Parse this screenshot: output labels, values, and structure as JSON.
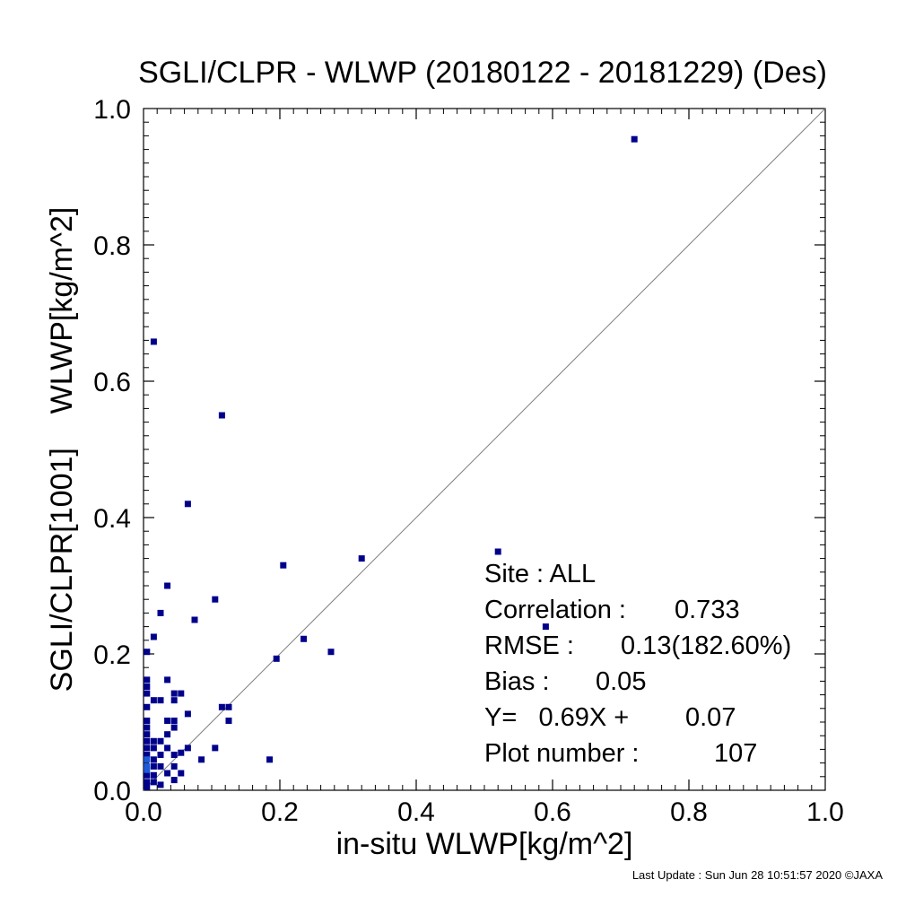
{
  "chart_data": {
    "type": "scatter",
    "title": "SGLI/CLPR - WLWP (20180122 - 20181229) (Des)",
    "xlabel": "in-situ WLWP[kg/m^2]",
    "ylabel": "SGLI/CLPR[1001]    WLWP[kg/m^2]",
    "xlim": [
      0.0,
      1.0
    ],
    "ylim": [
      0.0,
      1.0
    ],
    "x_ticks": [
      "0.0",
      "0.2",
      "0.4",
      "0.6",
      "0.8",
      "1.0"
    ],
    "y_ticks": [
      "0.0",
      "0.2",
      "0.4",
      "0.6",
      "0.8",
      "1.0"
    ],
    "reference_line": "1:1",
    "grid": false,
    "colors": {
      "point": "#00008b",
      "point_dense": "#1e5bd8",
      "reference_line": "#808080"
    },
    "points": [
      {
        "x": 0.72,
        "y": 0.955
      },
      {
        "x": 0.015,
        "y": 0.658
      },
      {
        "x": 0.115,
        "y": 0.55
      },
      {
        "x": 0.065,
        "y": 0.42
      },
      {
        "x": 0.52,
        "y": 0.35
      },
      {
        "x": 0.32,
        "y": 0.34
      },
      {
        "x": 0.205,
        "y": 0.33
      },
      {
        "x": 0.035,
        "y": 0.3
      },
      {
        "x": 0.105,
        "y": 0.28
      },
      {
        "x": 0.025,
        "y": 0.26
      },
      {
        "x": 0.075,
        "y": 0.25
      },
      {
        "x": 0.59,
        "y": 0.24
      },
      {
        "x": 0.015,
        "y": 0.225
      },
      {
        "x": 0.235,
        "y": 0.222
      },
      {
        "x": 0.275,
        "y": 0.203
      },
      {
        "x": 0.005,
        "y": 0.203
      },
      {
        "x": 0.195,
        "y": 0.193
      },
      {
        "x": 0.005,
        "y": 0.162
      },
      {
        "x": 0.035,
        "y": 0.162
      },
      {
        "x": 0.005,
        "y": 0.152
      },
      {
        "x": 0.005,
        "y": 0.142
      },
      {
        "x": 0.045,
        "y": 0.142
      },
      {
        "x": 0.055,
        "y": 0.142
      },
      {
        "x": 0.015,
        "y": 0.132
      },
      {
        "x": 0.025,
        "y": 0.132
      },
      {
        "x": 0.045,
        "y": 0.132
      },
      {
        "x": 0.115,
        "y": 0.122
      },
      {
        "x": 0.125,
        "y": 0.122
      },
      {
        "x": 0.005,
        "y": 0.122
      },
      {
        "x": 0.065,
        "y": 0.112
      },
      {
        "x": 0.035,
        "y": 0.102
      },
      {
        "x": 0.045,
        "y": 0.102
      },
      {
        "x": 0.125,
        "y": 0.102
      },
      {
        "x": 0.005,
        "y": 0.102
      },
      {
        "x": 0.045,
        "y": 0.092
      },
      {
        "x": 0.005,
        "y": 0.092
      },
      {
        "x": 0.035,
        "y": 0.082
      },
      {
        "x": 0.005,
        "y": 0.082
      },
      {
        "x": 0.015,
        "y": 0.072
      },
      {
        "x": 0.025,
        "y": 0.072
      },
      {
        "x": 0.005,
        "y": 0.072
      },
      {
        "x": 0.015,
        "y": 0.062
      },
      {
        "x": 0.035,
        "y": 0.062
      },
      {
        "x": 0.065,
        "y": 0.062
      },
      {
        "x": 0.105,
        "y": 0.062
      },
      {
        "x": 0.055,
        "y": 0.055
      },
      {
        "x": 0.025,
        "y": 0.052
      },
      {
        "x": 0.045,
        "y": 0.052
      },
      {
        "x": 0.085,
        "y": 0.045
      },
      {
        "x": 0.185,
        "y": 0.045
      },
      {
        "x": 0.015,
        "y": 0.045
      },
      {
        "x": 0.005,
        "y": 0.052
      },
      {
        "x": 0.005,
        "y": 0.062
      },
      {
        "x": 0.015,
        "y": 0.035
      },
      {
        "x": 0.025,
        "y": 0.035
      },
      {
        "x": 0.045,
        "y": 0.035
      },
      {
        "x": 0.035,
        "y": 0.025
      },
      {
        "x": 0.055,
        "y": 0.025
      },
      {
        "x": 0.005,
        "y": 0.022
      },
      {
        "x": 0.015,
        "y": 0.022
      },
      {
        "x": 0.045,
        "y": 0.015
      },
      {
        "x": 0.005,
        "y": 0.012
      },
      {
        "x": 0.015,
        "y": 0.012
      },
      {
        "x": 0.025,
        "y": 0.008
      },
      {
        "x": 0.005,
        "y": 0.005
      }
    ],
    "dense_points": [
      {
        "x": 0.005,
        "y": 0.045
      },
      {
        "x": 0.005,
        "y": 0.035
      },
      {
        "x": 0.005,
        "y": 0.03
      }
    ],
    "stats": [
      {
        "label": "Site : ALL"
      },
      {
        "label": "Correlation :",
        "value": "0.733"
      },
      {
        "label": "RMSE :",
        "value": "0.13(182.60%)"
      },
      {
        "label": "Bias :",
        "value": "0.05"
      },
      {
        "label": "Y=   0.69X +",
        "value": "0.07"
      },
      {
        "label": "Plot number :",
        "value": "107"
      }
    ]
  },
  "footer": {
    "last_update": "Last Update : Sun Jun 28 10:51:57 2020  ©JAXA"
  }
}
